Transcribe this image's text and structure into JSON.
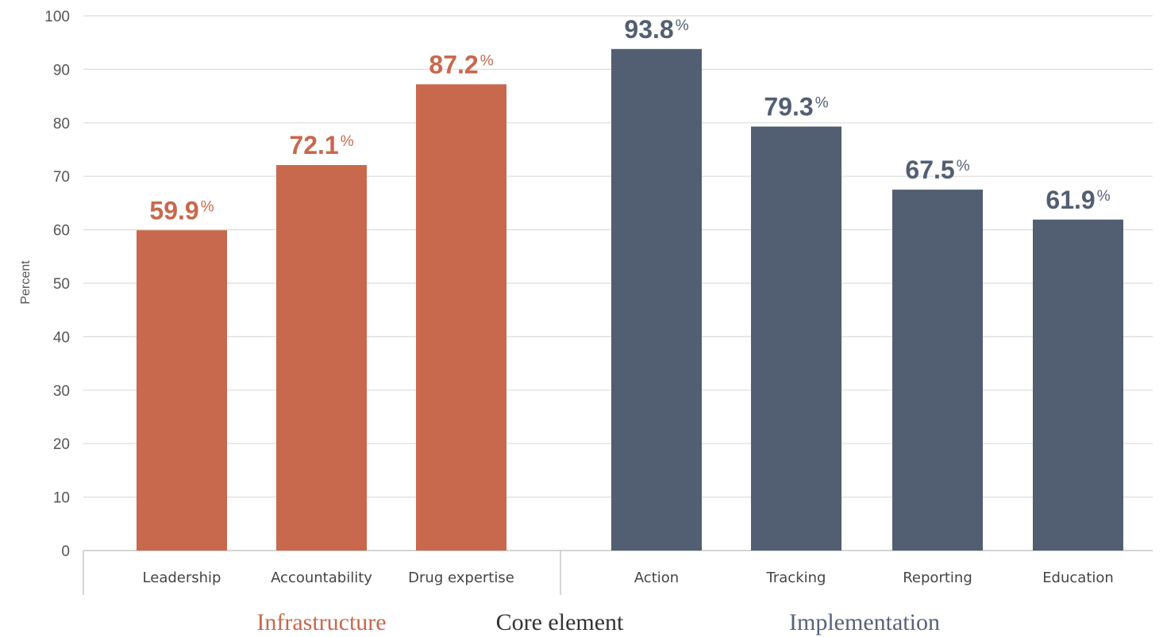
{
  "chart_data": {
    "type": "bar",
    "ylabel": "Percent",
    "xlabel": "Core element",
    "ylim": [
      0,
      100
    ],
    "yticks": [
      0,
      10,
      20,
      30,
      40,
      50,
      60,
      70,
      80,
      90,
      100
    ],
    "grid": true,
    "value_suffix": "%",
    "categories": [
      "Leadership",
      "Accountability",
      "Drug expertise",
      "Action",
      "Tracking",
      "Reporting",
      "Education"
    ],
    "values": [
      59.9,
      72.1,
      87.2,
      93.8,
      79.3,
      67.5,
      61.9
    ],
    "groups": [
      {
        "name": "Infrastructure",
        "categories": [
          "Leadership",
          "Accountability",
          "Drug expertise"
        ],
        "color": "#C8684D"
      },
      {
        "name": "Implementation",
        "categories": [
          "Action",
          "Tracking",
          "Reporting",
          "Education"
        ],
        "color": "#525F72"
      }
    ]
  }
}
